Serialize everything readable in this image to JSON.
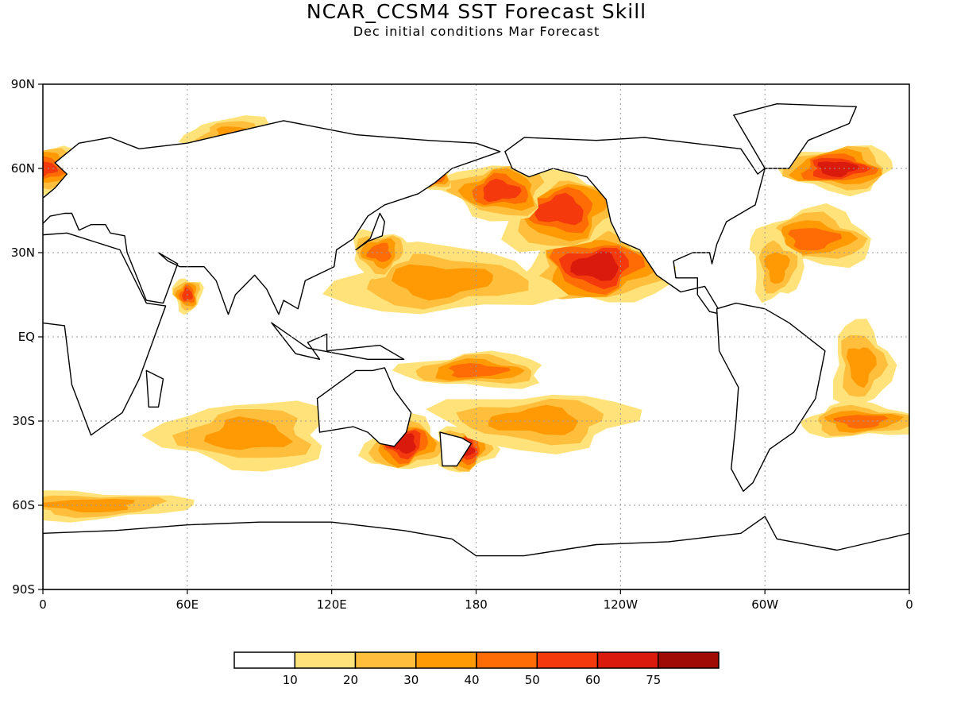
{
  "chart_data": {
    "type": "heatmap",
    "title": "NCAR_CCSM4 SST Forecast Skill",
    "subtitle": "Dec initial conditions  Mar Forecast",
    "x_ticks": [
      "0",
      "60E",
      "120E",
      "180",
      "120W",
      "60W",
      "0"
    ],
    "x_tick_values": [
      0,
      60,
      120,
      180,
      240,
      300,
      360
    ],
    "y_ticks": [
      "90N",
      "60N",
      "30N",
      "EQ",
      "30S",
      "60S",
      "90S"
    ],
    "y_tick_values": [
      90,
      60,
      30,
      0,
      -30,
      -60,
      -90
    ],
    "xlim": [
      0,
      360
    ],
    "ylim": [
      -90,
      90
    ],
    "grid": true,
    "colorbar": {
      "placement": "bottom",
      "labels": [
        "10",
        "20",
        "30",
        "40",
        "50",
        "60",
        "75"
      ],
      "bounds": [
        10,
        20,
        30,
        40,
        50,
        60,
        75
      ],
      "colors": [
        "#ffffff",
        "#ffe37a",
        "#ffbe3b",
        "#ff9a05",
        "#ff6c05",
        "#f43a0c",
        "#d91a0d",
        "#a10b05"
      ]
    },
    "skill_regions": [
      {
        "lon": 230,
        "lat": 25,
        "rlon": 30,
        "rlat": 14,
        "value": 65
      },
      {
        "lon": 215,
        "lat": 45,
        "rlon": 28,
        "rlat": 14,
        "value": 55
      },
      {
        "lon": 190,
        "lat": 52,
        "rlon": 22,
        "rlat": 10,
        "value": 55
      },
      {
        "lon": 162,
        "lat": 57,
        "rlon": 8,
        "rlat": 5,
        "value": 65
      },
      {
        "lon": 165,
        "lat": 20,
        "rlon": 45,
        "rlat": 12,
        "value": 32
      },
      {
        "lon": 140,
        "lat": 30,
        "rlon": 12,
        "rlat": 8,
        "value": 45
      },
      {
        "lon": 330,
        "lat": 60,
        "rlon": 24,
        "rlat": 8,
        "value": 68
      },
      {
        "lon": 320,
        "lat": 35,
        "rlon": 25,
        "rlat": 10,
        "value": 45
      },
      {
        "lon": 305,
        "lat": 25,
        "rlon": 10,
        "rlat": 12,
        "value": 38
      },
      {
        "lon": 60,
        "lat": 15,
        "rlon": 6,
        "rlat": 6,
        "value": 50
      },
      {
        "lon": 85,
        "lat": -35,
        "rlon": 35,
        "rlat": 12,
        "value": 35
      },
      {
        "lon": 150,
        "lat": -38,
        "rlon": 16,
        "rlat": 10,
        "value": 65
      },
      {
        "lon": 175,
        "lat": -40,
        "rlon": 12,
        "rlat": 8,
        "value": 62
      },
      {
        "lon": 205,
        "lat": -30,
        "rlon": 40,
        "rlat": 10,
        "value": 38
      },
      {
        "lon": 180,
        "lat": -12,
        "rlon": 30,
        "rlat": 6,
        "value": 40
      },
      {
        "lon": 340,
        "lat": -30,
        "rlon": 25,
        "rlat": 6,
        "value": 45
      },
      {
        "lon": 20,
        "lat": -60,
        "rlon": 40,
        "rlat": 5,
        "value": 32
      },
      {
        "lon": 0,
        "lat": 60,
        "rlon": 15,
        "rlat": 8,
        "value": 50
      },
      {
        "lon": 80,
        "lat": 72,
        "rlon": 20,
        "rlat": 6,
        "value": 32
      },
      {
        "lon": 340,
        "lat": -10,
        "rlon": 12,
        "rlat": 15,
        "value": 30
      }
    ]
  }
}
